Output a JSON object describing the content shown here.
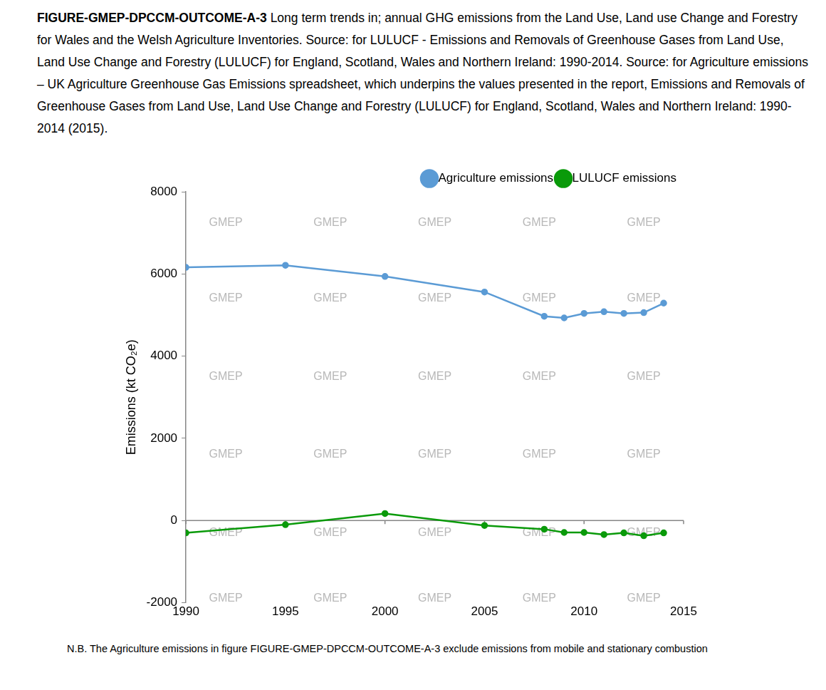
{
  "chart_data": {
    "type": "line",
    "figure_id": "FIGURE-GMEP-DPCCM-OUTCOME-A-3",
    "title": "Long term trends in; annual GHG emissions from the Land Use, Land use Change and Forestry for Wales and the Welsh Agriculture Inventories. Source: for LULUCF - Emissions and Removals of Greenhouse Gases from Land Use, Land Use Change and Forestry (LULUCF) for England, Scotland, Wales and Northern Ireland: 1990-2014. Source: for Agriculture emissions – UK Agriculture Greenhouse Gas Emissions spreadsheet, which underpins the values presented in the report, Emissions and Removals of Greenhouse Gases from Land Use, Land Use Change and Forestry (LULUCF) for England, Scotland, Wales and Northern Ireland: 1990-2014 (2015).",
    "note": "N.B.  The Agriculture emissions in figure FIGURE-GMEP-DPCCM-OUTCOME-A-3 exclude emissions from mobile and stationary combustion",
    "watermark": "GMEP",
    "y_label": "Emissions (kt CO₂e)",
    "x": [
      1990,
      1995,
      2000,
      2005,
      2008,
      2009,
      2010,
      2011,
      2012,
      2013,
      2014
    ],
    "series": [
      {
        "name": "Agriculture emissions",
        "color": "#5b9bd5",
        "marker": "circle",
        "line_style": "solid",
        "values": [
          6160,
          6210,
          5940,
          5560,
          4970,
          4930,
          5040,
          5080,
          5040,
          5060,
          5290
        ]
      },
      {
        "name": "LULUCF emissions",
        "color": "#0a9a0a",
        "marker": "circle",
        "line_style": "solid",
        "values": [
          -300,
          -100,
          170,
          -120,
          -210,
          -290,
          -290,
          -340,
          -300,
          -370,
          -300
        ]
      }
    ],
    "xlim": [
      1990,
      2015
    ],
    "xticks": [
      1990,
      1995,
      2000,
      2005,
      2010,
      2015
    ],
    "ylim": [
      -2000,
      8000
    ],
    "yticks": [
      -2000,
      0,
      2000,
      4000,
      6000,
      8000
    ],
    "grid": false,
    "legend": "top-right"
  }
}
